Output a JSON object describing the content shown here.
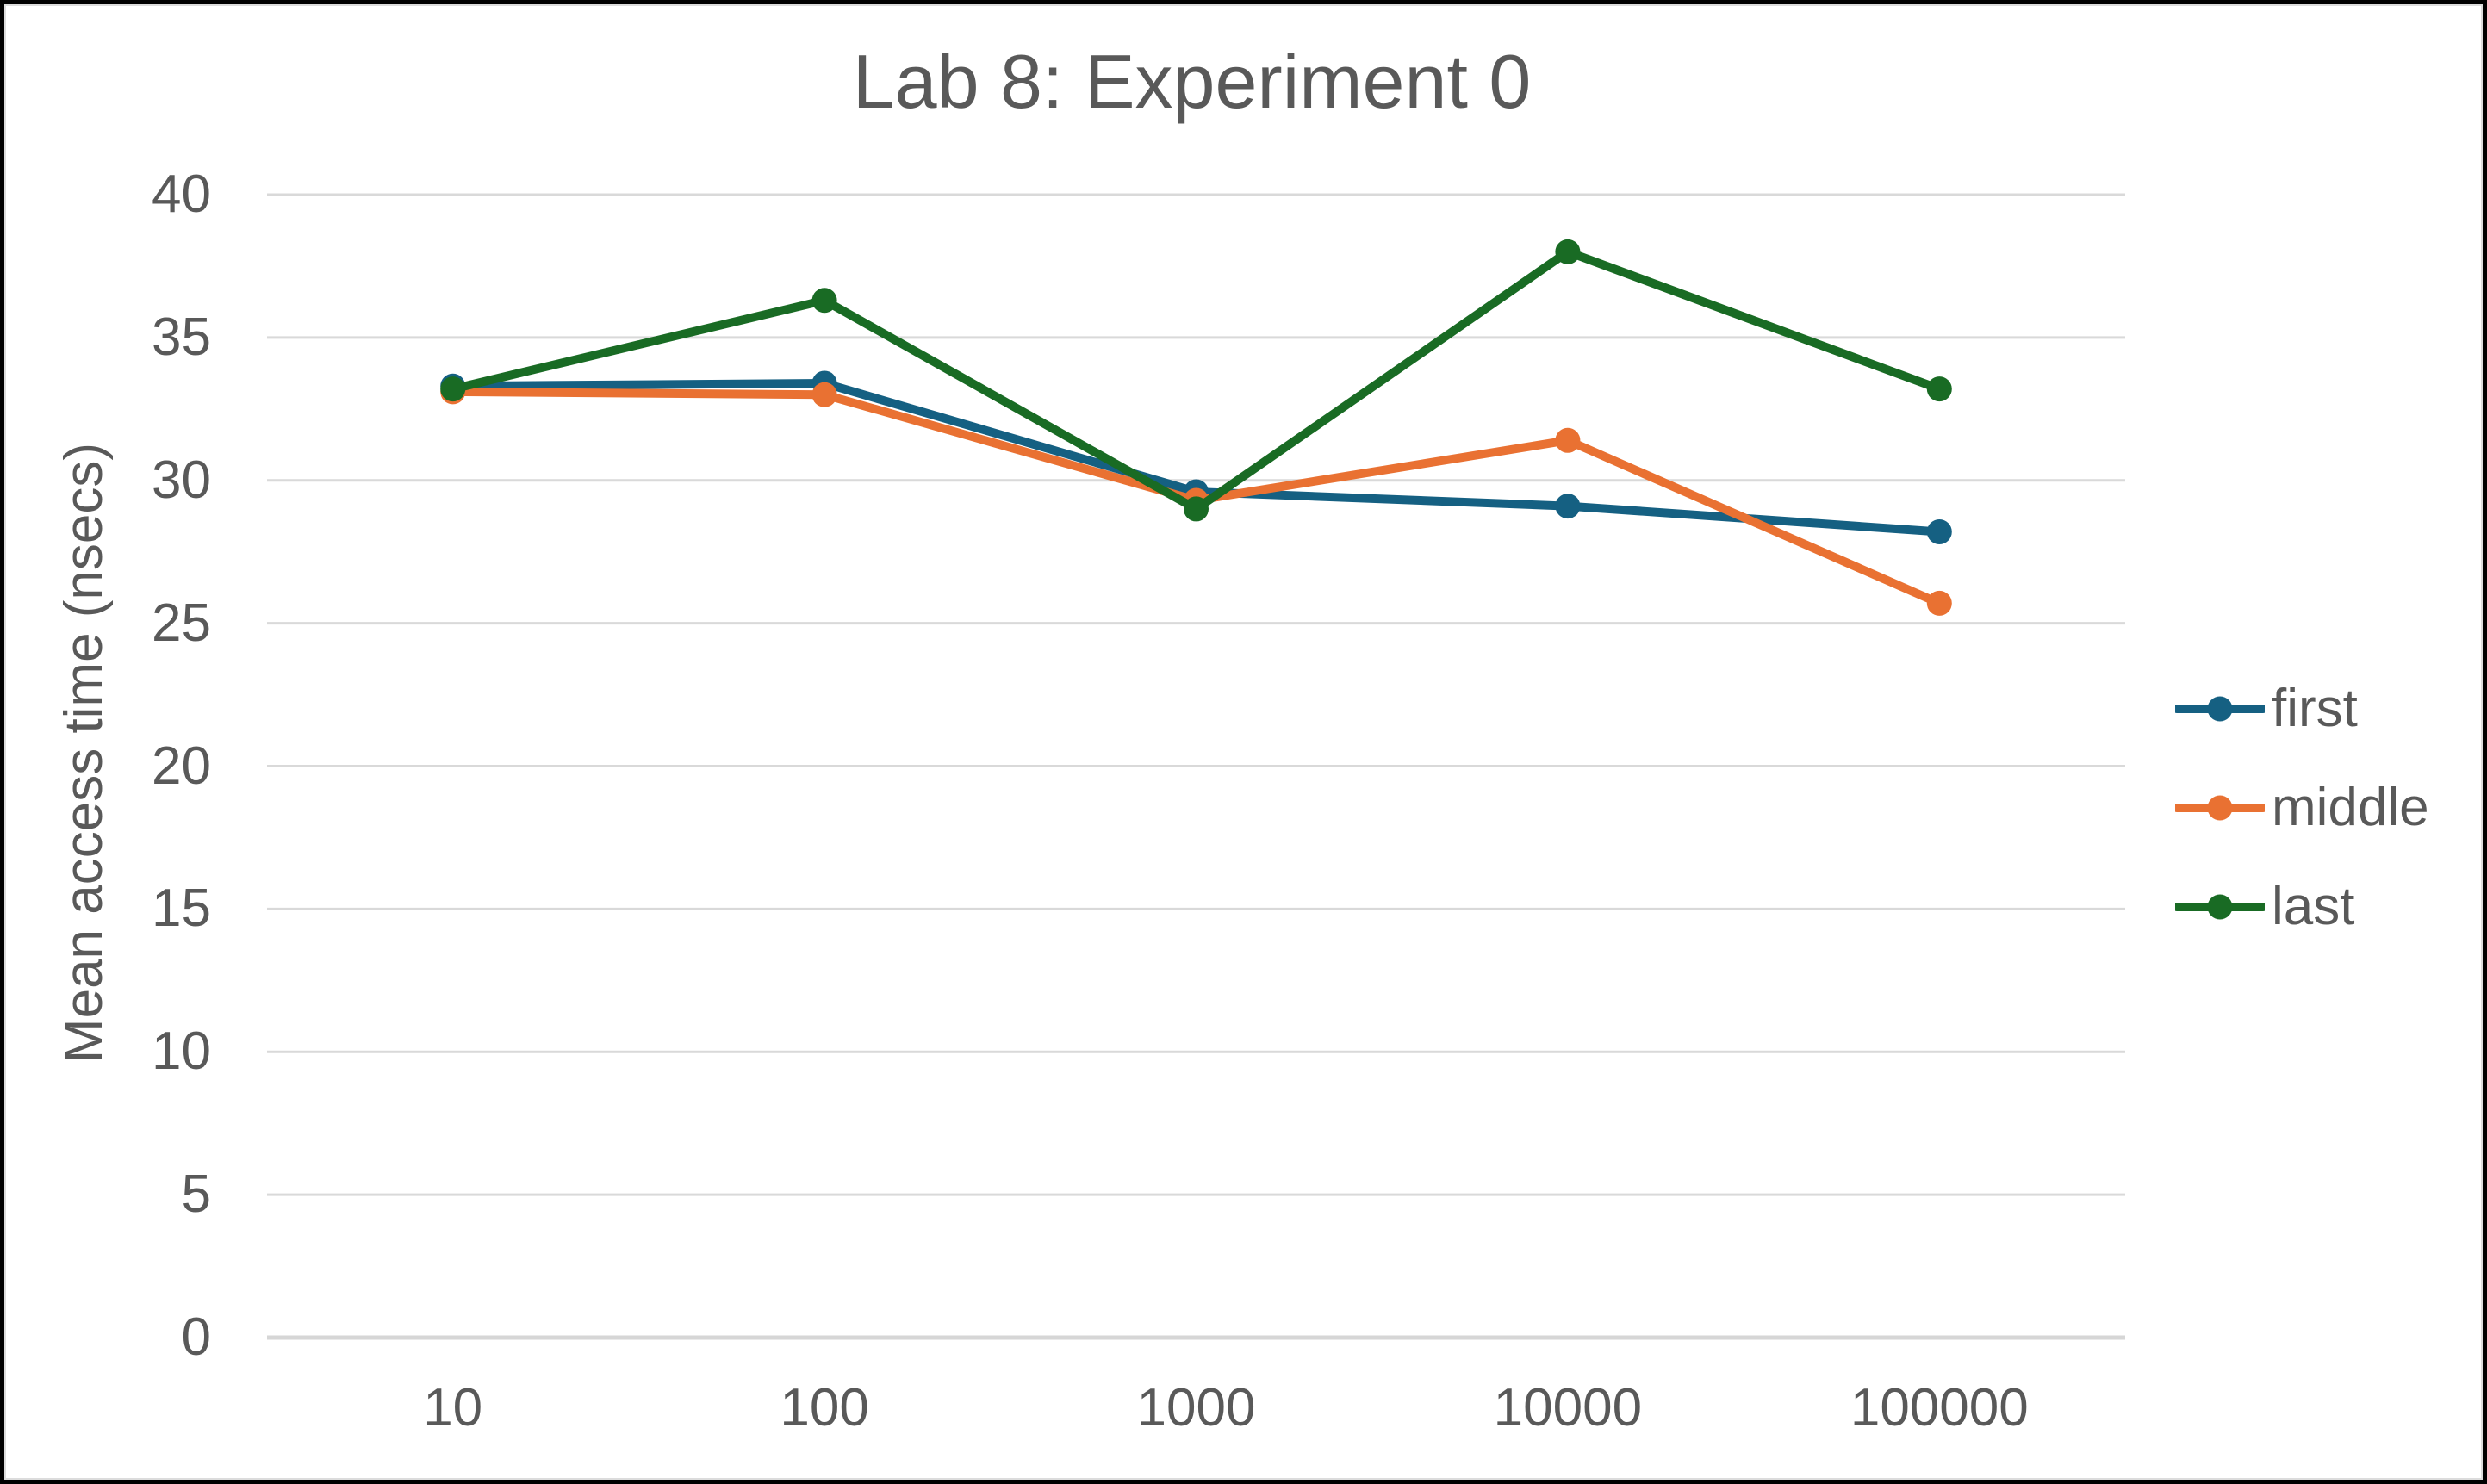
{
  "window": {
    "border_color": "#000000",
    "background": "#ffffff"
  },
  "colors": {
    "text": "#595959",
    "gridline": "#d9d9d9",
    "zero_axis_line": "#d6d6d6",
    "first": "#156082",
    "middle": "#e97132",
    "last": "#196b24"
  },
  "chart_data": {
    "type": "line",
    "title": "Lab 8: Experiment 0",
    "xlabel": "",
    "ylabel": "Mean access time (nsecs)",
    "categories": [
      "10",
      "100",
      "1000",
      "10000",
      "100000"
    ],
    "series": [
      {
        "name": "first",
        "color": "#156082",
        "values": [
          33.3,
          33.4,
          29.6,
          29.1,
          28.2
        ]
      },
      {
        "name": "middle",
        "color": "#e97132",
        "values": [
          33.1,
          33.0,
          29.3,
          31.4,
          25.7
        ]
      },
      {
        "name": "last",
        "color": "#196b24",
        "values": [
          33.2,
          36.3,
          29.0,
          38.0,
          33.2
        ]
      }
    ],
    "ylim": [
      0,
      40
    ],
    "ytick_step": 5,
    "yticks": [
      "0",
      "5",
      "10",
      "15",
      "20",
      "25",
      "30",
      "35",
      "40"
    ],
    "grid": true,
    "legend_position": "right",
    "markers": true
  }
}
